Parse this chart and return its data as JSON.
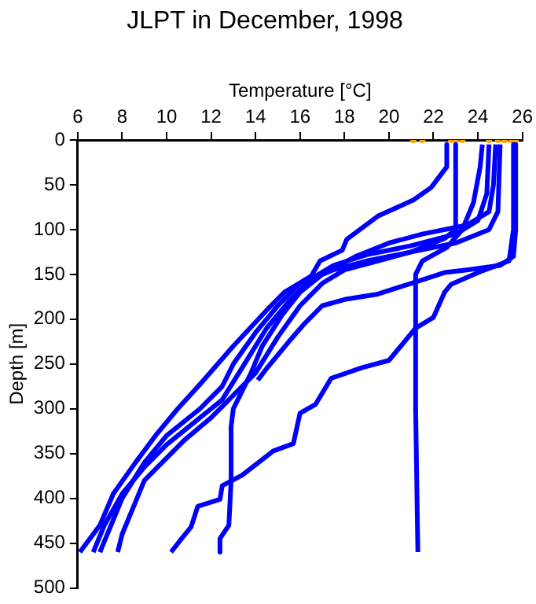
{
  "chart_data": {
    "type": "line",
    "title": "JLPT in December, 1998",
    "xlabel": "Temperature [°C]",
    "ylabel": "Depth [m]",
    "xlim": [
      6,
      26
    ],
    "xticks": [
      6,
      8,
      10,
      12,
      14,
      16,
      18,
      20,
      22,
      24,
      26
    ],
    "ylim": [
      500,
      0
    ],
    "yticks": [
      0,
      50,
      100,
      150,
      200,
      250,
      300,
      350,
      400,
      450,
      500
    ],
    "grid": false,
    "legend": false,
    "marker": "none",
    "line_style": "solid",
    "series": [
      {
        "color": "#0000ff",
        "x": [
          22.6,
          22.6,
          21.9,
          21.1,
          19.5,
          18.1,
          17.9,
          16.9,
          16.5,
          15.3,
          14.5,
          13,
          11.6,
          10.5,
          9.5,
          8.6,
          7.6,
          7,
          6.1
        ],
        "values": [
          5,
          30,
          53,
          67,
          85,
          111,
          123,
          135,
          152,
          170,
          190,
          230,
          270,
          300,
          330,
          360,
          395,
          430,
          460
        ]
      },
      {
        "color": "#0000ff",
        "x": [
          23,
          23,
          22.5,
          21,
          19,
          17.5,
          16,
          15,
          14,
          13,
          12.5,
          11.5,
          10,
          9,
          8,
          7.5,
          7
        ],
        "values": [
          5,
          100,
          110,
          125,
          135,
          145,
          160,
          185,
          215,
          250,
          275,
          300,
          330,
          360,
          400,
          430,
          460
        ]
      },
      {
        "color": "#0000ff",
        "x": [
          24.2,
          24.1,
          23.8,
          23.3,
          22.6,
          21.5,
          21.2,
          21.2,
          21.3
        ],
        "values": [
          5,
          30,
          70,
          100,
          120,
          135,
          150,
          300,
          460
        ]
      },
      {
        "color": "#0000ff",
        "x": [
          24.8,
          24.7,
          24.5,
          23.5,
          21.5,
          20,
          18.5,
          17,
          16,
          15.2,
          14.3,
          13.8,
          13.2,
          13,
          12.9,
          12.9,
          12.8,
          12.4,
          12.4
        ],
        "values": [
          5,
          50,
          80,
          95,
          105,
          115,
          130,
          150,
          170,
          195,
          230,
          260,
          290,
          300,
          320,
          380,
          430,
          445,
          460
        ]
      },
      {
        "color": "#0000ff",
        "x": [
          25,
          24.9,
          24.5,
          23,
          21,
          19.5,
          18,
          17,
          16,
          15,
          14,
          13,
          12,
          10.8,
          10,
          9,
          8.5,
          8,
          7.8
        ],
        "values": [
          5,
          80,
          100,
          115,
          125,
          135,
          145,
          160,
          185,
          220,
          260,
          285,
          310,
          335,
          355,
          380,
          410,
          440,
          460
        ]
      },
      {
        "color": "#0000ff",
        "x": [
          25.7,
          25.7,
          25.6,
          25,
          23.5,
          22.5,
          21,
          19.5,
          18,
          17,
          16.2,
          15.5,
          14.5,
          14.1
        ],
        "values": [
          5,
          100,
          130,
          140,
          145,
          148,
          160,
          172,
          178,
          185,
          205,
          225,
          255,
          268
        ]
      },
      {
        "color": "#0000ff",
        "x": [
          25.6,
          25.6,
          25.4,
          24.2,
          22.8,
          22.5,
          22,
          21.2,
          20,
          18.8,
          17.4,
          16.7,
          16,
          15.7,
          14.8,
          13.4,
          12.5,
          12.4,
          11.4,
          11.1,
          10.7,
          10.2
        ],
        "values": [
          5,
          100,
          135,
          146,
          161,
          170,
          198,
          210,
          246,
          254,
          266,
          295,
          305,
          339,
          347,
          374,
          386,
          401,
          409,
          432,
          444,
          460
        ]
      },
      {
        "color": "#0000ff",
        "x": [
          24.5,
          24.4,
          24,
          23,
          21,
          19,
          17.5,
          16.5,
          15.5,
          14.5,
          13.5,
          12.5,
          11,
          10,
          9,
          8,
          7.2,
          6.7
        ],
        "values": [
          5,
          60,
          90,
          105,
          118,
          128,
          140,
          155,
          180,
          210,
          250,
          290,
          320,
          340,
          365,
          395,
          430,
          460
        ]
      },
      {
        "type": "scatter",
        "marker": "circle",
        "color": "#ffa500",
        "x": [
          21.1,
          21.5,
          22.8,
          23,
          23.3,
          24.5,
          24.9,
          25.2,
          25.5,
          25.7
        ],
        "values": [
          0,
          0,
          0,
          0,
          0,
          0,
          0,
          0,
          0,
          0
        ]
      }
    ]
  }
}
